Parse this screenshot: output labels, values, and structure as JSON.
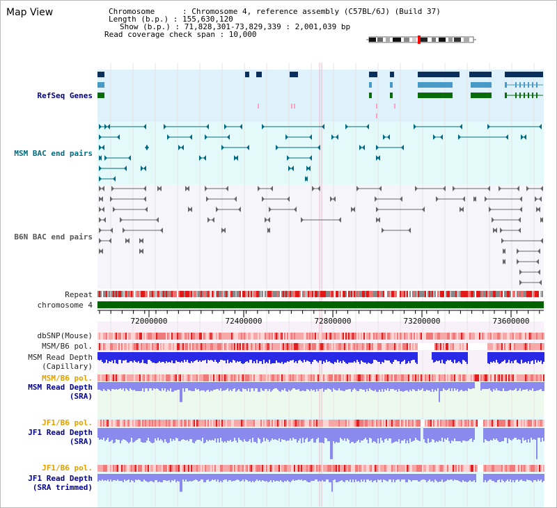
{
  "view_title": "Map View",
  "header": {
    "chromosome": "Chromosome      : Chromosome 4, reference assembly (C57BL/6J) (Build 37)",
    "length": "Length (b.p.) : 155,630,120",
    "show": "Show (b.p.) : 71,828,301-73,829,339 : 2,001,039 bp",
    "read_coverage": "Read coverage check span : 10,000"
  },
  "tracks": {
    "refseq": "RefSeq Genes",
    "msm_bac": "MSM BAC end pairs",
    "b6n_bac": "B6N BAC end pairs",
    "repeat": "Repeat",
    "chromosome": "chromosome 4",
    "dbsnp": "dbSNP(Mouse)",
    "msm_b6_pol": "MSM/B6 pol.",
    "msm_depth_cap_1": "MSM Read Depth",
    "msm_depth_cap_2": "(Capillary)",
    "msm_b6_pol2": "MSM/B6 pol.",
    "msm_depth_sra_1": "MSM Read Depth",
    "msm_depth_sra_2": "(SRA)",
    "jf1_b6_pol": "JF1/B6 pol.",
    "jf1_depth_sra_1": "JF1 Read Depth",
    "jf1_depth_sra_2": "(SRA)",
    "jf1_b6_pol2": "JF1/B6 pol.",
    "jf1_depth_tr_1": "JF1 Read Depth",
    "jf1_depth_tr_2": "(SRA trimmed)"
  },
  "axis_ticks": [
    "72000000",
    "72400000",
    "72800000",
    "73200000",
    "73600000"
  ],
  "colors": {
    "navy": "#00008b",
    "teal": "#006b80",
    "orange": "#e0a000",
    "chromosome_green": "#006400",
    "refseq_dark": "#0a2f5c",
    "refseq_mid": "#4a9ac8",
    "refseq_green": "#0a6b0a",
    "depth_blue": "#2a2ae6",
    "depth_light": "#8a8aee"
  }
}
